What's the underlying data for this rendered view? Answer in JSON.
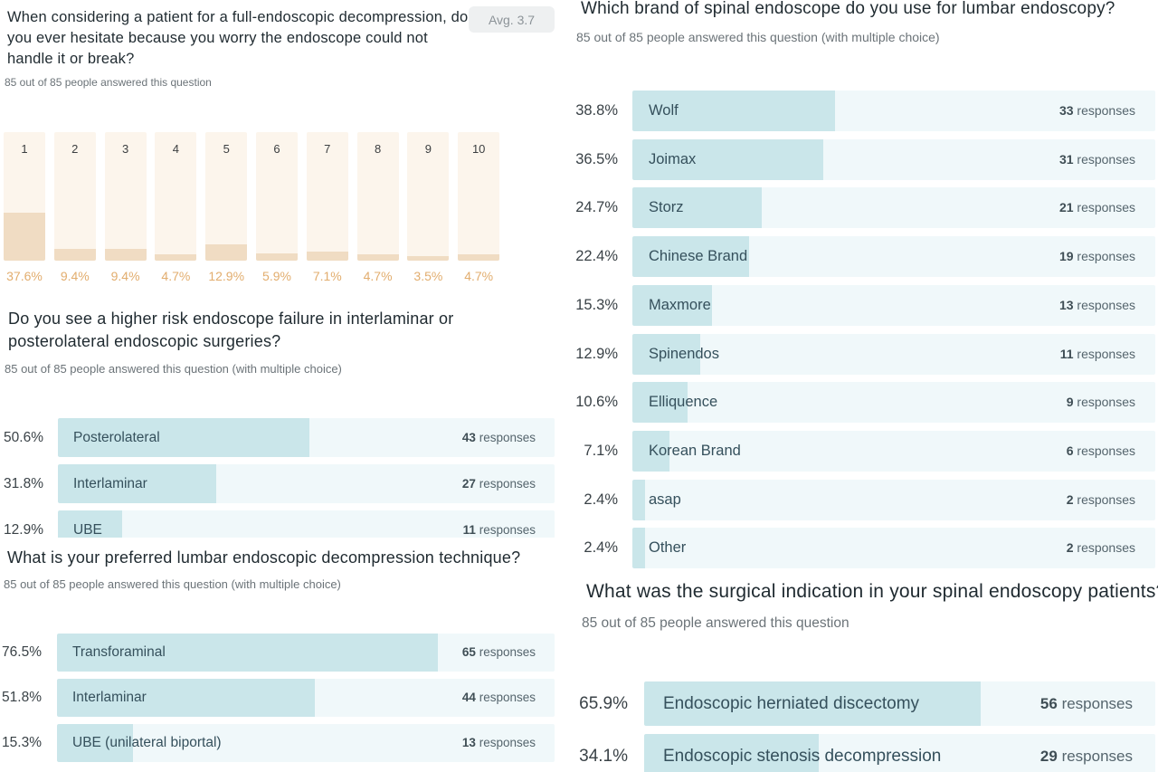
{
  "q1": {
    "title": "When considering a patient for a full-endoscopic decompression, do you ever hesitate because you worry the endoscope could not handle it or break?",
    "answered": "85 out of 85 people answered this question",
    "avg": "Avg. 3.7",
    "scale": [
      {
        "label": "1",
        "pct": "37.6%",
        "value": 37.6
      },
      {
        "label": "2",
        "pct": "9.4%",
        "value": 9.4
      },
      {
        "label": "3",
        "pct": "9.4%",
        "value": 9.4
      },
      {
        "label": "4",
        "pct": "4.7%",
        "value": 4.7
      },
      {
        "label": "5",
        "pct": "12.9%",
        "value": 12.9
      },
      {
        "label": "6",
        "pct": "5.9%",
        "value": 5.9
      },
      {
        "label": "7",
        "pct": "7.1%",
        "value": 7.1
      },
      {
        "label": "8",
        "pct": "4.7%",
        "value": 4.7
      },
      {
        "label": "9",
        "pct": "3.5%",
        "value": 3.5
      },
      {
        "label": "10",
        "pct": "4.7%",
        "value": 4.7
      }
    ]
  },
  "q2": {
    "title": "Do you see a higher risk endoscope failure in interlaminar or posterolateral endoscopic surgeries?",
    "answered": "85 out of 85 people answered this question (with multiple choice)",
    "options": [
      {
        "pct": "50.6%",
        "value": 50.6,
        "label": "Posterolateral",
        "count": "43",
        "unit": "responses"
      },
      {
        "pct": "31.8%",
        "value": 31.8,
        "label": "Interlaminar",
        "count": "27",
        "unit": "responses"
      },
      {
        "pct": "12.9%",
        "value": 12.9,
        "label": "UBE",
        "count": "11",
        "unit": "responses"
      }
    ]
  },
  "q3": {
    "title": "What is your preferred lumbar endoscopic decompression technique?",
    "answered": "85 out of 85 people answered this question (with multiple choice)",
    "options": [
      {
        "pct": "76.5%",
        "value": 76.5,
        "label": "Transforaminal",
        "count": "65",
        "unit": "responses"
      },
      {
        "pct": "51.8%",
        "value": 51.8,
        "label": "Interlaminar",
        "count": "44",
        "unit": "responses"
      },
      {
        "pct": "15.3%",
        "value": 15.3,
        "label": "UBE (unilateral biportal)",
        "count": "13",
        "unit": "responses"
      }
    ]
  },
  "q4": {
    "title": "Which brand of spinal endoscope do you use for lumbar endoscopy?",
    "answered": "85 out of 85 people answered this question (with multiple choice)",
    "options": [
      {
        "pct": "38.8%",
        "value": 38.8,
        "label": "Wolf",
        "count": "33",
        "unit": "responses"
      },
      {
        "pct": "36.5%",
        "value": 36.5,
        "label": "Joimax",
        "count": "31",
        "unit": "responses"
      },
      {
        "pct": "24.7%",
        "value": 24.7,
        "label": "Storz",
        "count": "21",
        "unit": "responses"
      },
      {
        "pct": "22.4%",
        "value": 22.4,
        "label": "Chinese Brand",
        "count": "19",
        "unit": "responses"
      },
      {
        "pct": "15.3%",
        "value": 15.3,
        "label": "Maxmore",
        "count": "13",
        "unit": "responses"
      },
      {
        "pct": "12.9%",
        "value": 12.9,
        "label": "Spinendos",
        "count": "11",
        "unit": "responses"
      },
      {
        "pct": "10.6%",
        "value": 10.6,
        "label": "Elliquence",
        "count": "9",
        "unit": "responses"
      },
      {
        "pct": "7.1%",
        "value": 7.1,
        "label": "Korean Brand",
        "count": "6",
        "unit": "responses"
      },
      {
        "pct": "2.4%",
        "value": 2.4,
        "label": "asap",
        "count": "2",
        "unit": "responses"
      },
      {
        "pct": "2.4%",
        "value": 2.4,
        "label": "Other",
        "count": "2",
        "unit": "responses"
      }
    ]
  },
  "q5": {
    "title": "What was the surgical indication in your spinal endoscopy patients?",
    "answered": "85 out of 85 people answered this question",
    "options": [
      {
        "pct": "65.9%",
        "value": 65.9,
        "label": "Endoscopic herniated discectomy",
        "count": "56",
        "unit": "responses"
      },
      {
        "pct": "34.1%",
        "value": 34.1,
        "label": "Endoscopic stenosis decompression",
        "count": "29",
        "unit": "responses"
      }
    ]
  }
}
